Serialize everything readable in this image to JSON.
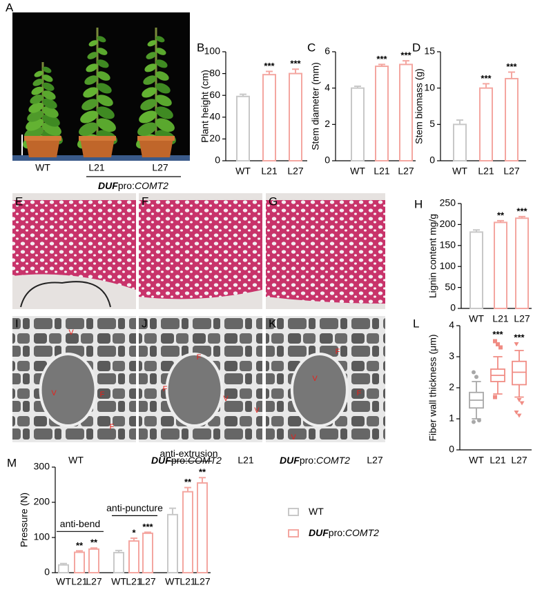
{
  "photos": {
    "plants": {
      "label": "A",
      "lanes": [
        "WT",
        "L21",
        "L27"
      ],
      "genotype": [
        "DUF",
        "pro:",
        "COMT2"
      ]
    },
    "sections": [
      {
        "label": "E"
      },
      {
        "label": "F"
      },
      {
        "label": "G"
      }
    ],
    "sem": [
      {
        "label": "I",
        "marks": [
          "V",
          "F",
          "V",
          "F"
        ],
        "caption": {
          "line": "WT"
        }
      },
      {
        "label": "J",
        "marks": [
          "F",
          "F",
          "V",
          "V"
        ],
        "caption": {
          "genotype": [
            "DUF",
            "pro:",
            "COMT2"
          ],
          "line": "L21"
        }
      },
      {
        "label": "K",
        "marks": [
          "F",
          "V",
          "F",
          "V"
        ],
        "caption": {
          "genotype": [
            "DUF",
            "pro:",
            "COMT2"
          ],
          "line": "L27"
        }
      }
    ]
  },
  "chart_data": [
    {
      "type": "bar",
      "label": "B",
      "y_label": "Plant height (cm)",
      "categories": [
        "WT",
        "L21",
        "L27"
      ],
      "values": [
        59,
        79,
        80
      ],
      "errors": [
        2,
        3,
        4
      ],
      "annotations": [
        null,
        "***",
        "***"
      ],
      "colors": [
        "#c8c8c8",
        "#f4a6a0",
        "#f4a6a0"
      ],
      "ylim": [
        0,
        100
      ],
      "yticks": [
        0,
        20,
        40,
        60,
        80,
        100
      ]
    },
    {
      "type": "bar",
      "label": "C",
      "y_label": "Stem diameter (mm)",
      "categories": [
        "WT",
        "L21",
        "L27"
      ],
      "values": [
        4.0,
        5.2,
        5.3
      ],
      "errors": [
        0.1,
        0.1,
        0.2
      ],
      "annotations": [
        null,
        "***",
        "***"
      ],
      "colors": [
        "#c8c8c8",
        "#f4a6a0",
        "#f4a6a0"
      ],
      "ylim": [
        0,
        6
      ],
      "yticks": [
        0,
        2,
        4,
        6
      ]
    },
    {
      "type": "bar",
      "label": "D",
      "y_label": "Stem biomass (g)",
      "categories": [
        "WT",
        "L21",
        "L27"
      ],
      "values": [
        5.0,
        10.0,
        11.3
      ],
      "errors": [
        0.6,
        0.6,
        0.9
      ],
      "annotations": [
        null,
        "***",
        "***"
      ],
      "colors": [
        "#c8c8c8",
        "#f4a6a0",
        "#f4a6a0"
      ],
      "ylim": [
        0,
        15
      ],
      "yticks": [
        0,
        5,
        10,
        15
      ]
    },
    {
      "type": "bar",
      "label": "H",
      "y_label": "Lignin content mg/g",
      "categories": [
        "WT",
        "L21",
        "L27"
      ],
      "values": [
        182,
        205,
        215
      ],
      "errors": [
        5,
        4,
        4
      ],
      "annotations": [
        null,
        "**",
        "***"
      ],
      "colors": [
        "#c8c8c8",
        "#f4a6a0",
        "#f4a6a0"
      ],
      "ylim": [
        0,
        250
      ],
      "yticks": [
        0,
        50,
        100,
        150,
        200,
        250
      ]
    },
    {
      "type": "box",
      "label": "L",
      "y_label": "Fiber wall thickness (μm)",
      "categories": [
        "WT",
        "L21",
        "L27"
      ],
      "boxes": [
        {
          "whisker_low": 1.0,
          "q1": 1.35,
          "median": 1.6,
          "q3": 1.85,
          "whisker_high": 2.2,
          "outliers": [
            2.5,
            2.35,
            0.95,
            0.9
          ]
        },
        {
          "whisker_low": 1.8,
          "q1": 2.2,
          "median": 2.4,
          "q3": 2.6,
          "whisker_high": 3.0,
          "outliers": [
            3.5,
            3.4,
            3.3,
            1.7
          ]
        },
        {
          "whisker_low": 1.7,
          "q1": 2.1,
          "median": 2.5,
          "q3": 2.85,
          "whisker_high": 3.2,
          "outliers": [
            3.4,
            1.6,
            1.5,
            1.2,
            1.1
          ]
        }
      ],
      "annotations": [
        null,
        "***",
        "***"
      ],
      "colors": [
        "#a8a8a8",
        "#f08c84",
        "#f08c84"
      ],
      "ylim": [
        0,
        4
      ],
      "yticks": [
        0,
        1,
        2,
        3,
        4
      ]
    },
    {
      "type": "grouped_bar",
      "label": "M",
      "y_label": "Pressure (N)",
      "groups": [
        {
          "name": "anti-bend",
          "categories": [
            "WT",
            "L21",
            "L27"
          ],
          "values": [
            22,
            58,
            67
          ],
          "errors": [
            4,
            4,
            3
          ],
          "annotations": [
            null,
            "**",
            "**"
          ]
        },
        {
          "name": "anti-puncture",
          "categories": [
            "WT",
            "L21",
            "L27"
          ],
          "values": [
            57,
            90,
            112
          ],
          "errors": [
            6,
            8,
            3
          ],
          "annotations": [
            null,
            "*",
            "***"
          ]
        },
        {
          "name": "anti-extrusion",
          "categories": [
            "WT",
            "L21",
            "L27"
          ],
          "values": [
            165,
            230,
            255
          ],
          "errors": [
            18,
            12,
            15
          ],
          "annotations": [
            null,
            "**",
            "**"
          ]
        }
      ],
      "colors": [
        "#c8c8c8",
        "#f4a6a0",
        "#f4a6a0"
      ],
      "legend": [
        {
          "name_parts": [
            "WT"
          ],
          "color": "#c8c8c8"
        },
        {
          "name_parts": [
            "DUF",
            "pro:",
            "COMT2"
          ],
          "color": "#f4a6a0"
        }
      ],
      "ylim": [
        0,
        300
      ],
      "yticks": [
        0,
        100,
        200,
        300
      ]
    }
  ]
}
